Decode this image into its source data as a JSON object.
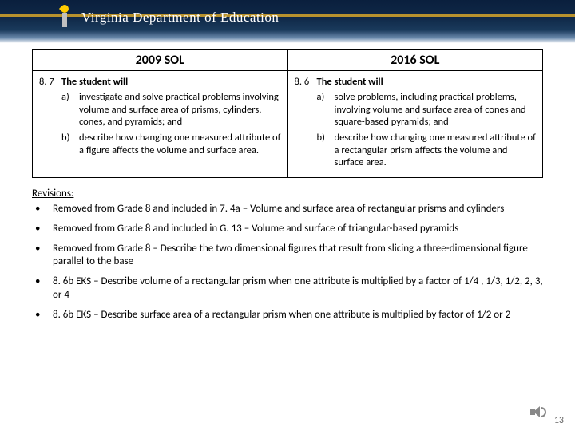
{
  "header": {
    "org_name": "Virginia Department of Education"
  },
  "table": {
    "col1_header": "2009 SOL",
    "col2_header": "2016 SOL",
    "left": {
      "std_num": "8. 7",
      "std_label": "The student will",
      "items": [
        {
          "letter": "a)",
          "text": "investigate and solve practical problems involving volume and surface area of prisms, cylinders, cones, and pyramids; and"
        },
        {
          "letter": "b)",
          "text": "describe how changing one measured attribute of a figure affects the volume and surface area."
        }
      ]
    },
    "right": {
      "std_num": "8. 6",
      "std_label": "The student will",
      "items": [
        {
          "letter": "a)",
          "text": "solve problems, including practical problems, involving volume and surface area of cones and square-based pyramids; and"
        },
        {
          "letter": "b)",
          "text": "describe how changing one measured attribute of a rectangular prism affects the volume and surface area."
        }
      ]
    }
  },
  "revisions": {
    "title": "Revisions:",
    "items": [
      "Removed from Grade 8 and included in 7. 4a – Volume and surface area of rectangular prisms and cylinders",
      "Removed from Grade 8 and included in G. 13 – Volume and surface of triangular-based pyramids",
      "Removed from Grade 8 – Describe the two dimensional figures that result from slicing a three-dimensional figure parallel to the base",
      "8. 6b EKS – Describe volume of a rectangular prism when one attribute is multiplied by a factor of 1/4 , 1/3, 1/2, 2, 3, or 4",
      "8. 6b EKS – Describe surface area of a rectangular prism when one attribute is multiplied by factor of  1/2 or 2"
    ]
  },
  "page_number": "13"
}
